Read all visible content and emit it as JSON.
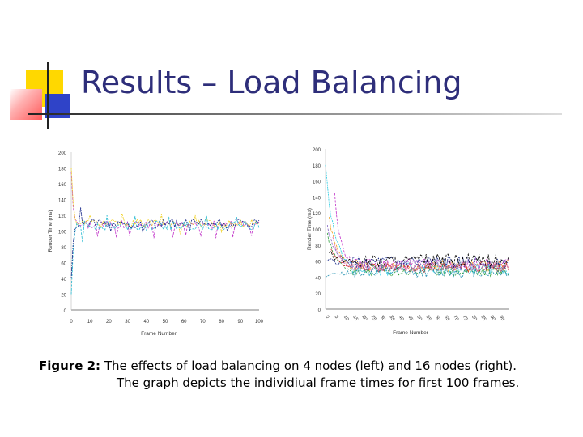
{
  "slide": {
    "title": "Results – Load Balancing",
    "caption_label": "Figure 2:",
    "caption_text": "The effects of load balancing on 4 nodes (left) and 16 nodes (right).",
    "caption_line2": "The graph depicts the individiual frame times for first 100 frames."
  },
  "colors": {
    "title": "#2e2e7a",
    "accent_yellow": "#ffd800",
    "accent_red": "#ff5a5a",
    "accent_blue": "#2f43c8"
  },
  "chart_data": [
    {
      "type": "line",
      "title": "",
      "xlabel": "Frame Number",
      "ylabel": "Render Time (ms)",
      "xlim": [
        0,
        100
      ],
      "ylim": [
        0,
        200
      ],
      "x_ticks": [
        "0",
        "10",
        "20",
        "30",
        "40",
        "50",
        "60",
        "70",
        "80",
        "90",
        "100"
      ],
      "y_ticks": [
        "0",
        "20",
        "40",
        "60",
        "80",
        "100",
        "120",
        "140",
        "160",
        "180",
        "200"
      ],
      "series": [
        {
          "color": "#c030c8",
          "start": [
            0,
            175
          ],
          "base": 108,
          "amp": 5,
          "spikes": [
            [
              14,
              93
            ],
            [
              24,
              92
            ],
            [
              31,
              94
            ],
            [
              44,
              91
            ],
            [
              54,
              92
            ],
            [
              61,
              95
            ],
            [
              69,
              93
            ],
            [
              77,
              91
            ],
            [
              86,
              92
            ],
            [
              96,
              94
            ]
          ]
        },
        {
          "color": "#f0d020",
          "start": [
            0,
            180
          ],
          "base": 110,
          "amp": 5,
          "spikes": [
            [
              10,
              120
            ],
            [
              27,
              122
            ],
            [
              48,
              121
            ],
            [
              58,
              96
            ],
            [
              66,
              120
            ],
            [
              80,
              98
            ]
          ]
        },
        {
          "color": "#20b8d0",
          "start": [
            0,
            20
          ],
          "base": 107,
          "amp": 6,
          "spikes": [
            [
              6,
              86
            ],
            [
              19,
              120
            ],
            [
              34,
              119
            ],
            [
              52,
              118
            ],
            [
              72,
              120
            ],
            [
              88,
              118
            ]
          ]
        },
        {
          "color": "#1a2a8a",
          "start": [
            0,
            40
          ],
          "base": 109,
          "amp": 6,
          "spikes": [
            [
              5,
              130
            ],
            [
              21,
              100
            ],
            [
              38,
              99
            ],
            [
              63,
              100
            ],
            [
              83,
              101
            ]
          ]
        }
      ]
    },
    {
      "type": "line",
      "title": "",
      "xlabel": "Frame Number",
      "ylabel": "Render Time (ms)",
      "xlim": [
        0,
        100
      ],
      "ylim": [
        0,
        200
      ],
      "x_ticks": [
        "0",
        "5",
        "10",
        "15",
        "20",
        "25",
        "30",
        "35",
        "40",
        "45",
        "50",
        "55",
        "60",
        "65",
        "70",
        "75",
        "80",
        "85",
        "90",
        "95"
      ],
      "y_ticks": [
        "0",
        "20",
        "40",
        "60",
        "80",
        "100",
        "120",
        "140",
        "160",
        "180",
        "200"
      ],
      "series": [
        {
          "color": "#c030c8",
          "start": [
            5,
            145
          ],
          "base": 56,
          "amp": 7
        },
        {
          "color": "#20c8e0",
          "start": [
            0,
            180
          ],
          "base": 50,
          "amp": 8
        },
        {
          "color": "#f0a020",
          "start": [
            2,
            115
          ],
          "base": 54,
          "amp": 7
        },
        {
          "color": "#1a2a8a",
          "start": [
            0,
            60
          ],
          "base": 58,
          "amp": 8
        },
        {
          "color": "#30a040",
          "start": [
            1,
            95
          ],
          "base": 48,
          "amp": 7
        },
        {
          "color": "#d02020",
          "start": [
            3,
            75
          ],
          "base": 52,
          "amp": 6
        },
        {
          "color": "#8060c0",
          "start": [
            1,
            105
          ],
          "base": 55,
          "amp": 7
        },
        {
          "color": "#2090b0",
          "start": [
            0,
            40
          ],
          "base": 46,
          "amp": 6
        },
        {
          "color": "#000000",
          "start": [
            2,
            70
          ],
          "base": 60,
          "amp": 9
        },
        {
          "color": "#e060a0",
          "start": [
            4,
            90
          ],
          "base": 53,
          "amp": 6
        }
      ]
    }
  ]
}
